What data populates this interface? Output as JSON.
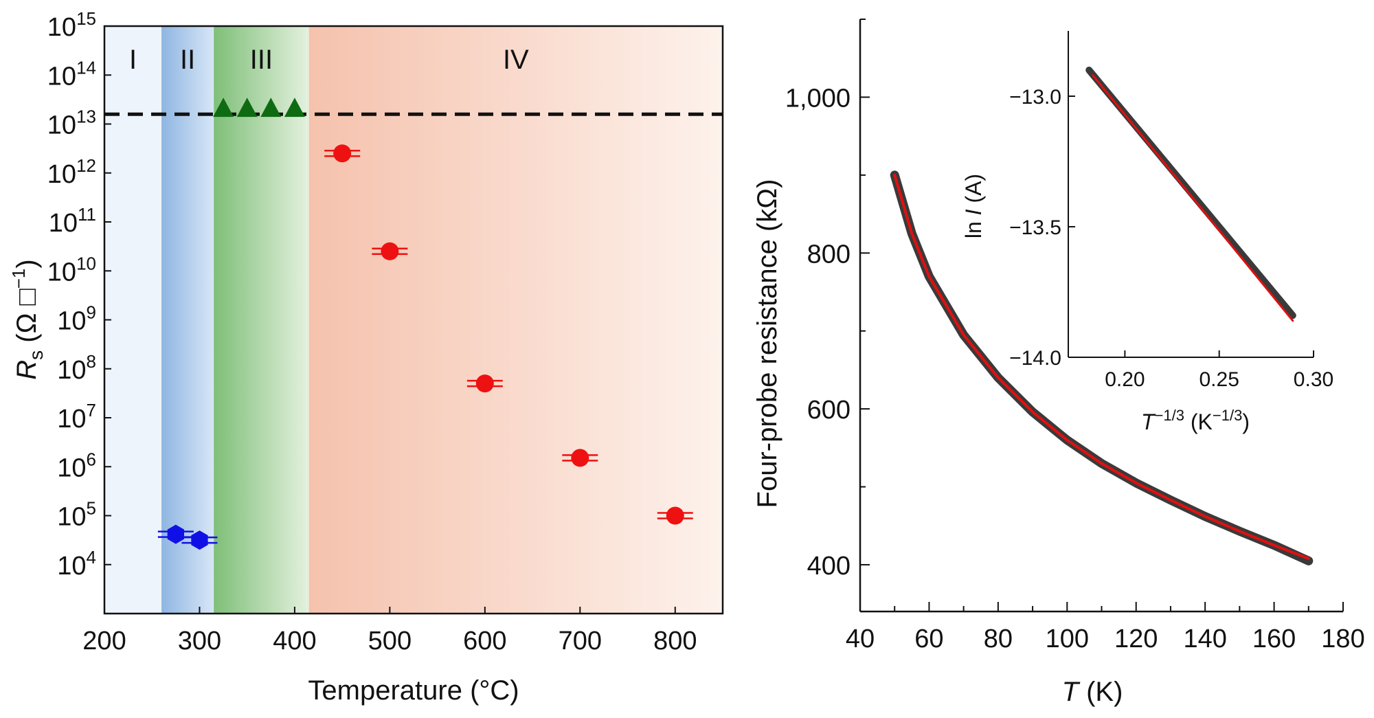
{
  "chart_data": [
    {
      "type": "scatter",
      "xlabel": "Temperature (°C)",
      "ylabel": "R_s (Ω □⁻¹)",
      "y_scale": "log",
      "xlim": [
        200,
        850
      ],
      "ylim_log10": [
        3,
        15
      ],
      "x_ticks": [
        200,
        300,
        400,
        500,
        600,
        700,
        800
      ],
      "y_ticks_exp": [
        4,
        5,
        6,
        7,
        8,
        9,
        10,
        11,
        12,
        13,
        14,
        15
      ],
      "y_tick_base": "10",
      "regions": [
        {
          "label": "I",
          "from": 200,
          "to": 260,
          "color": "#eef4fb"
        },
        {
          "label": "II",
          "from": 260,
          "to": 315,
          "color": "#9ec1e6"
        },
        {
          "label": "III",
          "from": 315,
          "to": 415,
          "color": "#8fc68a"
        },
        {
          "label": "IV",
          "from": 415,
          "to": 850,
          "color": "#f6c7b4"
        }
      ],
      "reference_line_log10": 13.2,
      "series": [
        {
          "marker": "hexagon",
          "color": "#1010e6",
          "points": [
            {
              "x": 275,
              "y_log10": 4.62
            },
            {
              "x": 300,
              "y_log10": 4.5
            }
          ]
        },
        {
          "marker": "triangle",
          "color": "#0e6b12",
          "points": [
            {
              "x": 325,
              "y_log10": 13.3
            },
            {
              "x": 350,
              "y_log10": 13.3
            },
            {
              "x": 375,
              "y_log10": 13.3
            },
            {
              "x": 400,
              "y_log10": 13.3
            }
          ]
        },
        {
          "marker": "circle",
          "color": "#ee1111",
          "points": [
            {
              "x": 450,
              "y_log10": 12.4
            },
            {
              "x": 500,
              "y_log10": 10.4
            },
            {
              "x": 600,
              "y_log10": 7.7
            },
            {
              "x": 700,
              "y_log10": 6.18
            },
            {
              "x": 800,
              "y_log10": 5.0
            }
          ]
        }
      ]
    },
    {
      "type": "line",
      "xlabel_symbol": "T",
      "xlabel_unit": " (K)",
      "ylabel": "Four-probe resistance (kΩ)",
      "xlim": [
        40,
        180
      ],
      "ylim": [
        340,
        1100
      ],
      "x_ticks": [
        40,
        60,
        80,
        100,
        120,
        140,
        160,
        180
      ],
      "y_ticks": [
        400,
        600,
        800
      ],
      "y_tick_labels": [
        "400",
        "600",
        "800",
        "1,000"
      ],
      "y_ticks_all": [
        400,
        600,
        800,
        1000
      ],
      "series": [
        {
          "name": "data",
          "color": "#3a3a3a",
          "x": [
            50,
            55,
            60,
            70,
            80,
            90,
            100,
            110,
            120,
            130,
            140,
            150,
            160,
            170
          ],
          "y": [
            900,
            825,
            770,
            695,
            640,
            596,
            560,
            530,
            505,
            483,
            462,
            443,
            425,
            405
          ]
        },
        {
          "name": "fit",
          "color": "#e01010",
          "x": [
            50,
            55,
            60,
            70,
            80,
            90,
            100,
            110,
            120,
            130,
            140,
            150,
            160,
            170
          ],
          "y": [
            900,
            825,
            770,
            695,
            640,
            596,
            560,
            530,
            505,
            483,
            462,
            443,
            425,
            408
          ]
        }
      ],
      "inset": {
        "type": "line",
        "xlabel": "T⁻¹ᐟ³ (K⁻¹ᐟ³)",
        "ylabel": "ln I (A)",
        "xlim": [
          0.17,
          0.3
        ],
        "ylim": [
          -14.0,
          -12.75
        ],
        "x_ticks": [
          0.2,
          0.25,
          0.3
        ],
        "x_tick_labels": [
          "0.20",
          "0.25",
          "0.30"
        ],
        "y_ticks": [
          -13.0,
          -13.5,
          -14.0
        ],
        "y_tick_labels": [
          "−13.0",
          "−13.5",
          "−14.0"
        ],
        "series": [
          {
            "name": "data",
            "color": "#3a3a3a",
            "x": [
              0.181,
              0.289
            ],
            "y": [
              -12.9,
              -13.84
            ]
          },
          {
            "name": "fit",
            "color": "#e01010",
            "x": [
              0.183,
              0.289
            ],
            "y": [
              -12.92,
              -13.86
            ]
          }
        ]
      }
    }
  ]
}
